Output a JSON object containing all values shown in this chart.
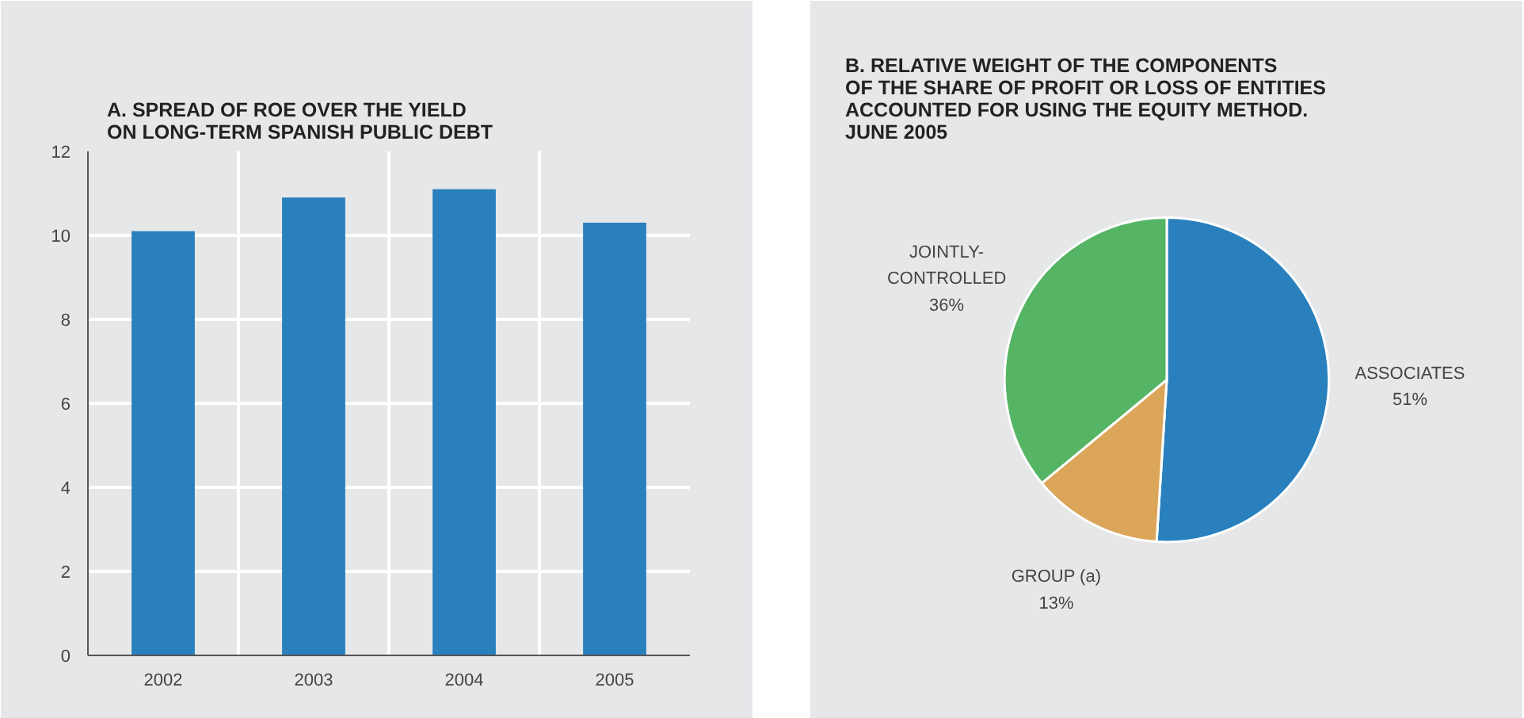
{
  "chart_data": [
    {
      "type": "bar",
      "title": "A.  SPREAD OF ROE OVER THE YIELD\nON LONG-TERM SPANISH PUBLIC DEBT",
      "categories": [
        "2002",
        "2003",
        "2004",
        "2005"
      ],
      "values": [
        10.1,
        10.9,
        11.1,
        10.3
      ],
      "color": "#2980bd",
      "ylim": [
        0,
        12
      ],
      "yticks": [
        0,
        2,
        4,
        6,
        8,
        10,
        12
      ],
      "grid": true
    },
    {
      "type": "pie",
      "title": "B.  RELATIVE WEIGHT OF THE COMPONENTS\nOF THE SHARE OF PROFIT OR LOSS OF ENTITIES\nACCOUNTED FOR USING THE EQUITY METHOD.\nJUNE 2005",
      "categories": [
        "ASSOCIATES",
        "GROUP (a)",
        "JOINTLY-\nCONTROLLED"
      ],
      "values": [
        51,
        13,
        36
      ],
      "colors": [
        "#2980bd",
        "#dba65a",
        "#55b565"
      ],
      "value_labels": [
        "51%",
        "13%",
        "36%"
      ]
    }
  ]
}
